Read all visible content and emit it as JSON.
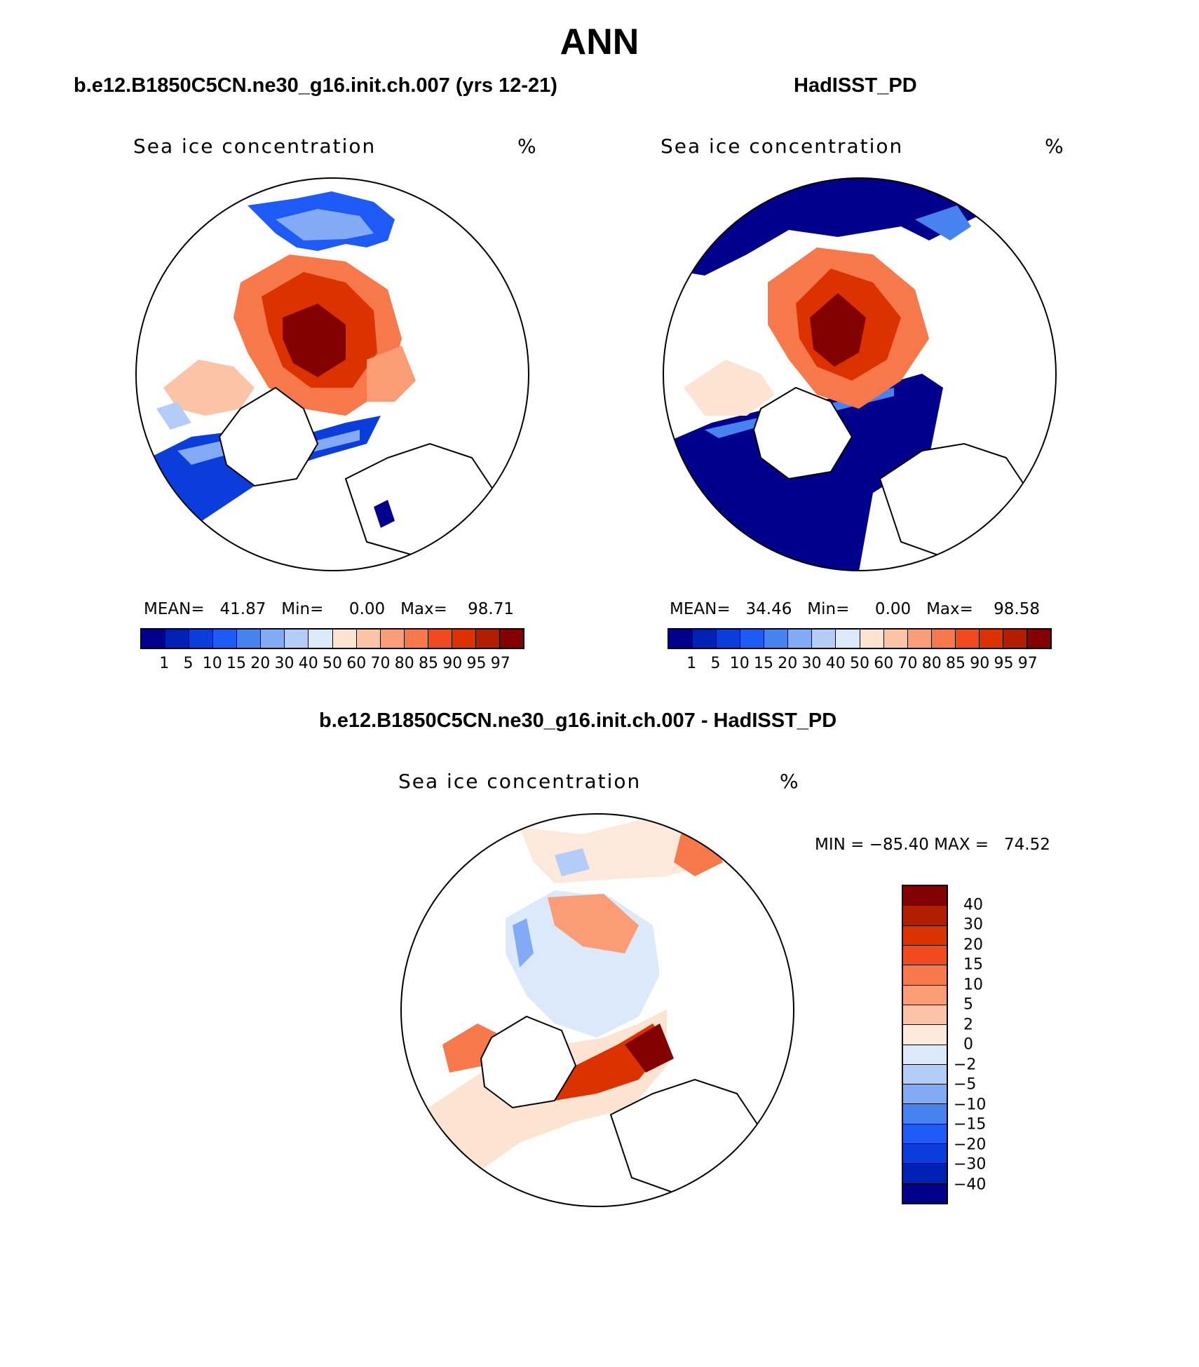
{
  "figure_title": "ANN",
  "panels": [
    {
      "title": "b.e12.B1850C5CN.ne30_g16.init.ch.007 (yrs 12-21)",
      "left_label": "Sea ice concentration",
      "right_label": "%",
      "stats": "MEAN=   41.87   Min=     0.00   Max=    98.71"
    },
    {
      "title": "HadISST_PD",
      "left_label": "Sea ice concentration",
      "right_label": "%",
      "stats": "MEAN=   34.46   Min=     0.00   Max=    98.58"
    },
    {
      "title": "b.e12.B1850C5CN.ne30_g16.init.ch.007 - HadISST_PD",
      "left_label": "Sea ice concentration",
      "right_label": "%",
      "stats": "MIN = −85.40 MAX =   74.52"
    }
  ],
  "colorbar_abs": {
    "levels": [
      "1",
      "5",
      "10",
      "15",
      "20",
      "30",
      "40",
      "50",
      "60",
      "70",
      "80",
      "85",
      "90",
      "95",
      "97"
    ],
    "colors": [
      "#00008c",
      "#0022b4",
      "#0a3ddc",
      "#1e5af5",
      "#4682f0",
      "#82aaf5",
      "#b4cdf8",
      "#dbe9fb",
      "#fde4d2",
      "#fcc3a7",
      "#fa9c75",
      "#f7784a",
      "#f04a1e",
      "#dc3200",
      "#b41e00",
      "#820000"
    ]
  },
  "colorbar_diff": {
    "levels": [
      "40",
      "30",
      "20",
      "15",
      "10",
      "5",
      "2",
      "0",
      "−2",
      "−5",
      "−10",
      "−15",
      "−20",
      "−30",
      "−40"
    ],
    "colors": [
      "#820000",
      "#b41e00",
      "#dc3200",
      "#f04a1e",
      "#f7784a",
      "#fa9c75",
      "#fcc3a7",
      "#fde9dc",
      "#dbe9fb",
      "#b4cdf8",
      "#82aaf5",
      "#4682f0",
      "#1e5af5",
      "#0a3ddc",
      "#0022b4",
      "#00008c"
    ]
  }
}
